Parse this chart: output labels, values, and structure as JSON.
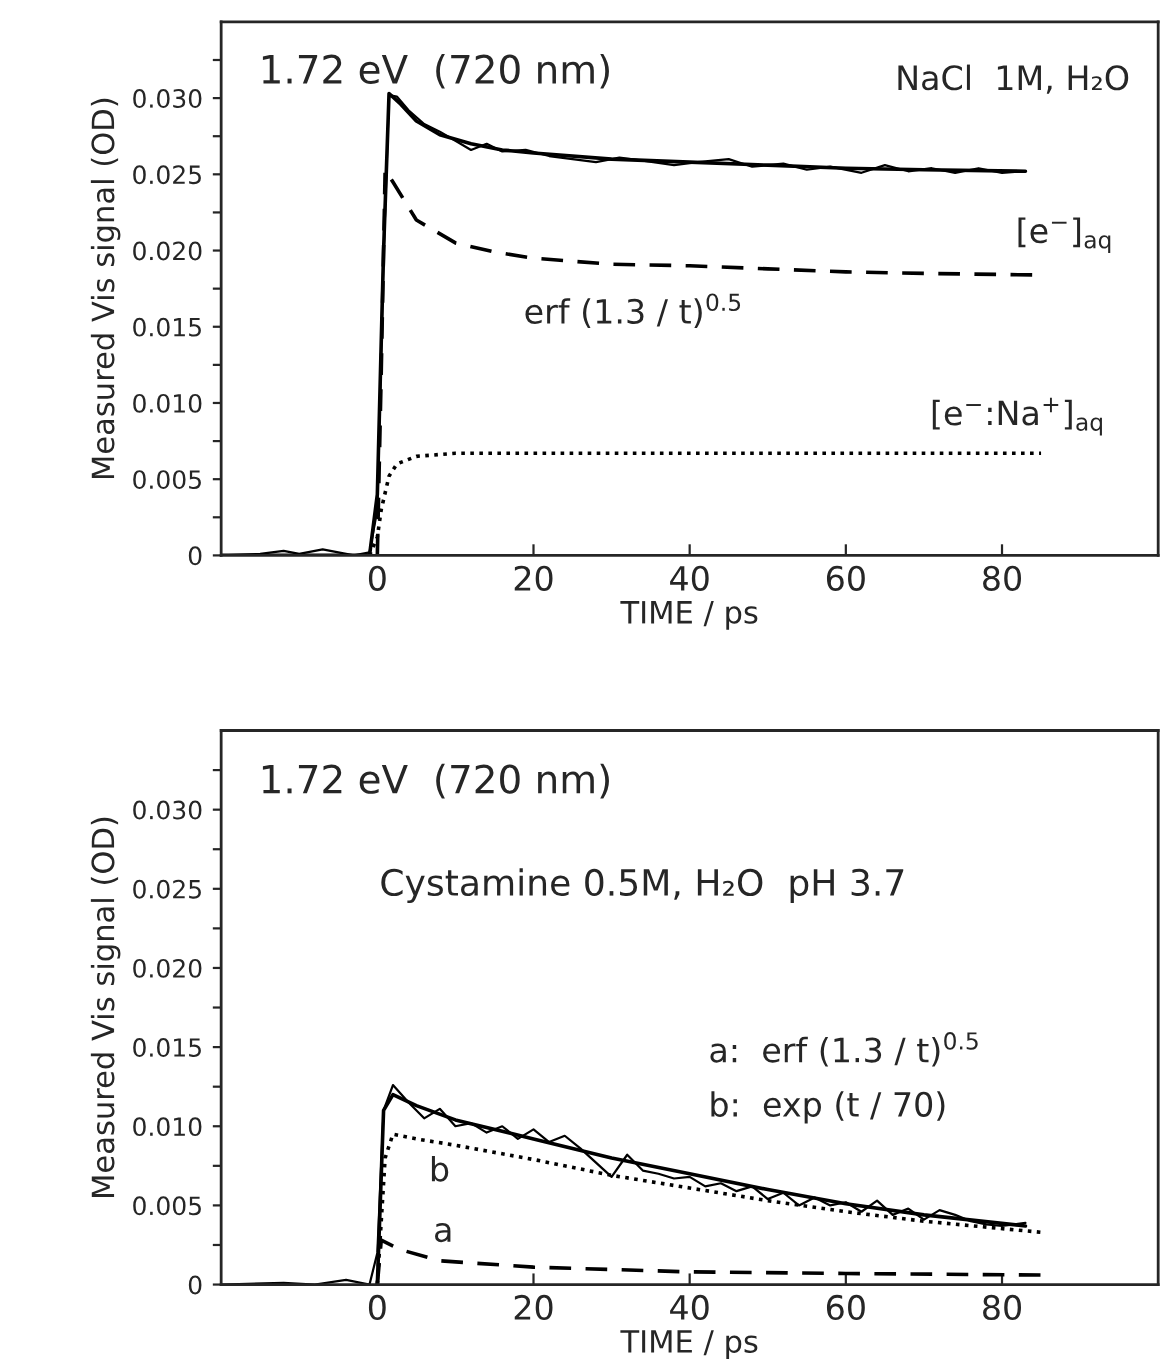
{
  "chart_data": [
    {
      "type": "line",
      "title": "1.72 eV  (720 nm)",
      "subtitle": "NaCl  1M, H₂O",
      "xlabel": "TIME / ps",
      "ylabel": "Measured Vis signal (OD)",
      "xlim": [
        -20,
        100
      ],
      "ylim": [
        0,
        0.035
      ],
      "xticks": [
        0,
        20,
        40,
        60,
        80
      ],
      "yticks": [
        0,
        {
          "value": 0.0025,
          "label": null
        },
        {
          "value": 0.005,
          "label": "0.005"
        },
        {
          "value": 0.0075,
          "label": null
        },
        {
          "value": 0.01,
          "label": "0.010"
        },
        {
          "value": 0.0125,
          "label": null
        },
        {
          "value": 0.015,
          "label": "0.015"
        },
        {
          "value": 0.0175,
          "label": null
        },
        {
          "value": 0.02,
          "label": "0.020"
        },
        {
          "value": 0.0225,
          "label": null
        },
        {
          "value": 0.025,
          "label": "0.025"
        },
        {
          "value": 0.0275,
          "label": null
        },
        {
          "value": 0.03,
          "label": "0.030"
        },
        {
          "value": 0.0325,
          "label": null
        }
      ],
      "grid": false,
      "legend": false,
      "marker": "none",
      "series": [
        {
          "color": "#000000",
          "line_style": "solid",
          "x": [
            -20,
            -15,
            -12,
            -10,
            -7,
            -5,
            -3,
            -1,
            0,
            0.7,
            1.5,
            2.5,
            4,
            6,
            8,
            10,
            12,
            14,
            16,
            19,
            22,
            25,
            28,
            31,
            34,
            38,
            41,
            45,
            48,
            52,
            55,
            58,
            62,
            65,
            68,
            71,
            74,
            77,
            80,
            83
          ],
          "values": [
            0,
            0.0001,
            0.0003,
            0.0001,
            0.0004,
            0.0002,
            0,
            0.0002,
            0.003,
            0.018,
            0.0302,
            0.0301,
            0.0292,
            0.0283,
            0.0278,
            0.0272,
            0.0266,
            0.027,
            0.0265,
            0.0266,
            0.0262,
            0.026,
            0.0258,
            0.0261,
            0.0259,
            0.0256,
            0.0258,
            0.026,
            0.0255,
            0.0257,
            0.0253,
            0.0255,
            0.0251,
            0.0256,
            0.0252,
            0.0254,
            0.0251,
            0.0254,
            0.0251,
            0.0252
          ]
        },
        {
          "color": "#000000",
          "line_style": "solid",
          "x": [
            -20,
            -1,
            0,
            0.8,
            1.5,
            3,
            5,
            8,
            12,
            16,
            20,
            30,
            40,
            50,
            60,
            70,
            83
          ],
          "values": [
            0,
            0,
            0.004,
            0.02,
            0.0303,
            0.0296,
            0.0285,
            0.0276,
            0.027,
            0.0266,
            0.0264,
            0.026,
            0.0258,
            0.0256,
            0.0254,
            0.0253,
            0.0252
          ]
        },
        {
          "color": "#000000",
          "line_style": "dashed",
          "x": [
            0,
            0.5,
            1,
            2,
            5,
            10,
            15,
            20,
            30,
            40,
            50,
            60,
            70,
            84
          ],
          "values": [
            0,
            0.012,
            0.0253,
            0.0245,
            0.022,
            0.0205,
            0.0199,
            0.0195,
            0.0191,
            0.019,
            0.0188,
            0.0186,
            0.0185,
            0.0184
          ]
        },
        {
          "color": "#000000",
          "line_style": "dotted",
          "x": [
            -1,
            0,
            0.5,
            1.5,
            2.5,
            5,
            10,
            20,
            40,
            60,
            85
          ],
          "values": [
            0,
            0.0012,
            0.003,
            0.0052,
            0.006,
            0.0065,
            0.0067,
            0.0067,
            0.0067,
            0.0067,
            0.0067
          ]
        }
      ],
      "annotations": [
        "[e$^{−}$]$_{aq}$",
        "erf (1.3 / t)$^{0.5}$",
        "[e$^{−}$:Na$^{+}$]$_{aq}$"
      ]
    },
    {
      "type": "line",
      "title": "1.72 eV  (720 nm)",
      "subtitle": "Cystamine 0.5M, H₂O  pH 3.7",
      "xlabel": "TIME / ps",
      "ylabel": "Measured Vis signal (OD)",
      "xlim": [
        -20,
        100
      ],
      "ylim": [
        0,
        0.035
      ],
      "xticks": [
        0,
        20,
        40,
        60,
        80
      ],
      "yticks": [
        0,
        {
          "value": 0.0025,
          "label": null
        },
        {
          "value": 0.005,
          "label": "0.005"
        },
        {
          "value": 0.0075,
          "label": null
        },
        {
          "value": 0.01,
          "label": "0.010"
        },
        {
          "value": 0.0125,
          "label": null
        },
        {
          "value": 0.015,
          "label": "0.015"
        },
        {
          "value": 0.0175,
          "label": null
        },
        {
          "value": 0.02,
          "label": "0.020"
        },
        {
          "value": 0.0225,
          "label": null
        },
        {
          "value": 0.025,
          "label": "0.025"
        },
        {
          "value": 0.0275,
          "label": null
        },
        {
          "value": 0.03,
          "label": "0.030"
        },
        {
          "value": 0.0325,
          "label": null
        }
      ],
      "grid": false,
      "legend": false,
      "marker": "none",
      "series": [
        {
          "color": "#000000",
          "line_style": "solid",
          "x": [
            -20,
            -12,
            -8,
            -4,
            -1,
            0,
            0.8,
            2,
            4,
            6,
            8,
            10,
            12,
            14,
            16,
            18,
            20,
            22,
            24,
            26,
            28,
            30,
            32,
            34,
            36,
            38,
            40,
            42,
            44,
            46,
            48,
            50,
            52,
            54,
            56,
            58,
            60,
            62,
            64,
            66,
            68,
            70,
            72,
            74,
            76,
            78,
            80,
            83
          ],
          "values": [
            0,
            0.0001,
            0,
            0.0003,
            0,
            0.002,
            0.011,
            0.0126,
            0.0115,
            0.0105,
            0.0111,
            0.01,
            0.0102,
            0.0096,
            0.01,
            0.0092,
            0.0098,
            0.009,
            0.0094,
            0.0086,
            0.0077,
            0.0068,
            0.0082,
            0.0072,
            0.007,
            0.0067,
            0.0068,
            0.0062,
            0.0064,
            0.0059,
            0.0062,
            0.0054,
            0.0058,
            0.005,
            0.0055,
            0.005,
            0.0052,
            0.0046,
            0.0053,
            0.0044,
            0.0048,
            0.0041,
            0.0047,
            0.0044,
            0.004,
            0.0038,
            0.0037,
            0.0039
          ]
        },
        {
          "color": "#000000",
          "line_style": "solid",
          "x": [
            0,
            0.8,
            2,
            5,
            10,
            20,
            30,
            40,
            50,
            60,
            70,
            83
          ],
          "values": [
            0,
            0.011,
            0.012,
            0.0113,
            0.0104,
            0.0092,
            0.008,
            0.007,
            0.006,
            0.0051,
            0.0044,
            0.0037
          ]
        },
        {
          "color": "#000000",
          "line_style": "dotted",
          "x": [
            0,
            1,
            2,
            5,
            10,
            20,
            30,
            40,
            50,
            60,
            70,
            85
          ],
          "values": [
            0,
            0.008,
            0.0095,
            0.0092,
            0.0088,
            0.0079,
            0.0069,
            0.0061,
            0.0053,
            0.0046,
            0.004,
            0.0033
          ]
        },
        {
          "color": "#000000",
          "line_style": "dashed",
          "x": [
            0,
            0.5,
            3,
            8,
            20,
            40,
            60,
            85
          ],
          "values": [
            0,
            0.0028,
            0.0022,
            0.0015,
            0.0011,
            0.0008,
            0.0007,
            0.0006
          ]
        }
      ],
      "annotations": [
        "a:  erf (1.3 / t)$^{0.5}$",
        "b:  exp (t / 70)",
        "b",
        "a"
      ]
    }
  ]
}
